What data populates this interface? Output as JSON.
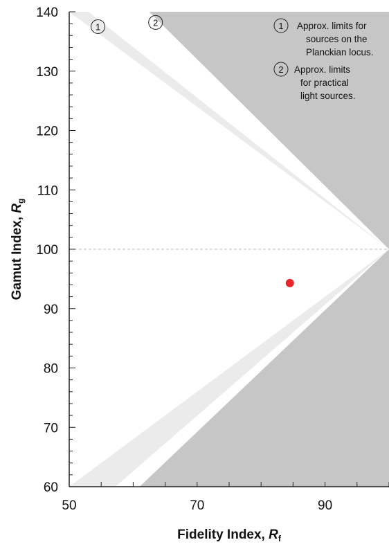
{
  "chart_data": {
    "type": "scatter",
    "xlabel_main": "Fidelity Index, ",
    "xlabel_var": "R",
    "xlabel_sub": "f",
    "ylabel_main": "Gamut Index, ",
    "ylabel_var": "R",
    "ylabel_sub": "g",
    "xlim": [
      50,
      100
    ],
    "ylim": [
      60,
      140
    ],
    "x_ticks": [
      50,
      70,
      90
    ],
    "y_ticks": [
      60,
      70,
      80,
      90,
      100,
      110,
      120,
      130,
      140
    ],
    "x_minor_step": 5,
    "y_minor_step": 2,
    "reference_line_y": 100,
    "regions": [
      {
        "id": "1",
        "top": [
          [
            50,
            140
          ],
          [
            53,
            140
          ],
          [
            100,
            100
          ]
        ],
        "bottom": [
          [
            50,
            60
          ],
          [
            57.2,
            60
          ],
          [
            100,
            100
          ]
        ],
        "color": "#ebebeb"
      },
      {
        "id": "2",
        "top": [
          [
            62.5,
            140
          ],
          [
            100,
            140
          ],
          [
            100,
            100
          ]
        ],
        "bottom": [
          [
            61,
            60
          ],
          [
            100,
            60
          ],
          [
            100,
            100
          ]
        ],
        "color": "#c6c6c6"
      }
    ],
    "markers": [
      {
        "label": "1",
        "x": 54.5,
        "y": 137.5
      },
      {
        "label": "2",
        "x": 63.5,
        "y": 138.2
      }
    ],
    "points": [
      {
        "x": 84.5,
        "y": 94.3,
        "color": "#e8242c"
      }
    ],
    "legend": [
      {
        "label": "1",
        "lines": [
          "Approx. limits for",
          "sources on the",
          "Planckian locus."
        ]
      },
      {
        "label": "2",
        "lines": [
          "Approx. limits",
          "for practical",
          "light sources."
        ]
      }
    ]
  }
}
